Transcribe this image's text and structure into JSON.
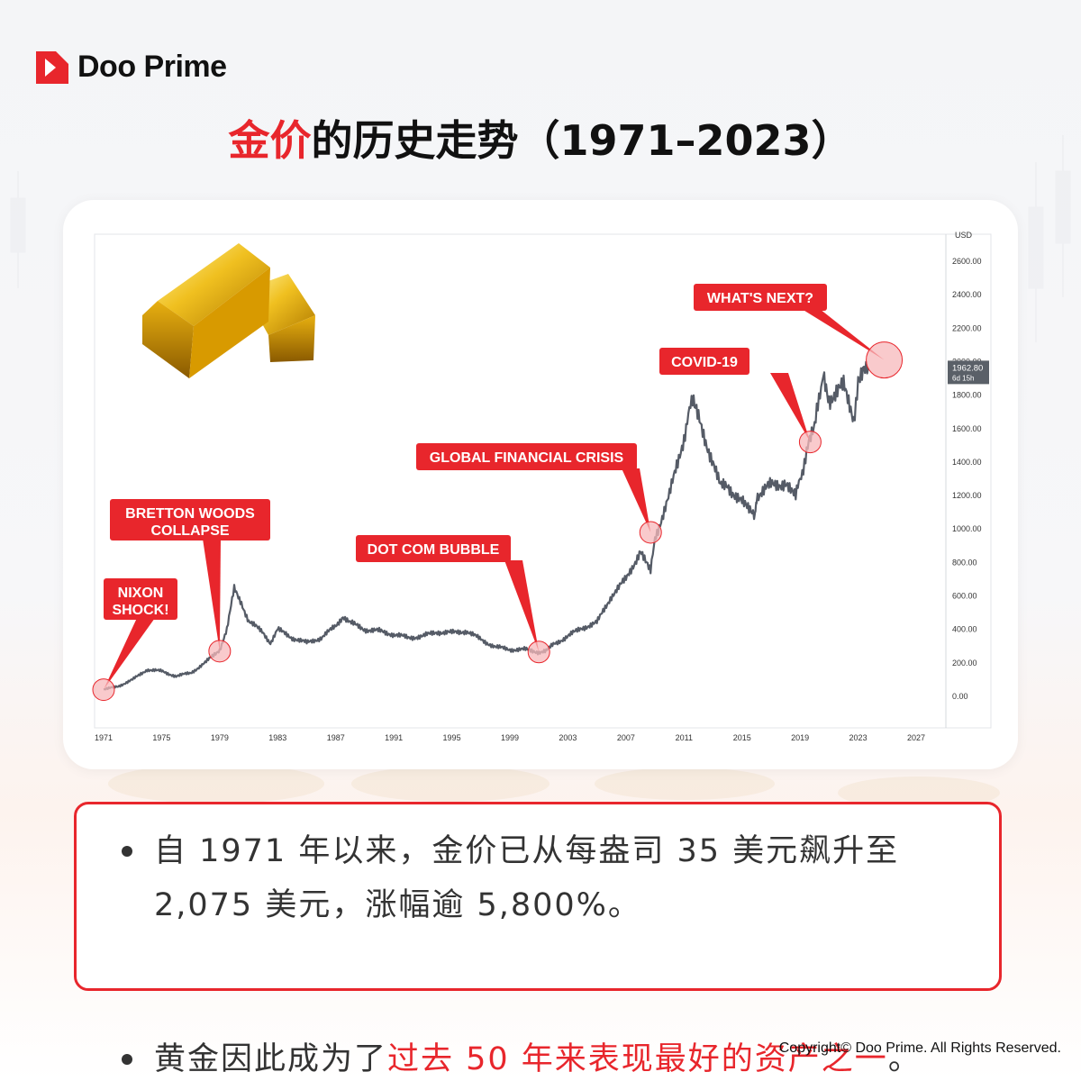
{
  "brand": {
    "name": "Doo Prime"
  },
  "title": {
    "part_red": "金价",
    "part_black": "的历史走势（1971–2023）"
  },
  "chart_data": {
    "type": "line",
    "currency_label": "USD",
    "y_ticks": [
      "2600.00",
      "2400.00",
      "2200.00",
      "2000.00",
      "1800.00",
      "1600.00",
      "1400.00",
      "1200.00",
      "1000.00",
      "800.00",
      "600.00",
      "400.00",
      "200.00",
      "0.00"
    ],
    "x_ticks": [
      "1971",
      "1975",
      "1979",
      "1983",
      "1987",
      "1991",
      "1995",
      "1999",
      "2003",
      "2007",
      "2011",
      "2015",
      "2019",
      "2023",
      "2027"
    ],
    "ylim": [
      0,
      2600
    ],
    "xlim": [
      1971,
      2027
    ],
    "last_price": "1962.80",
    "last_price_sub": "6d 15h",
    "series": [
      {
        "x": [
          1971,
          1972,
          1973,
          1974,
          1975,
          1976,
          1977,
          1978,
          1979,
          1979.5,
          1980,
          1980.5,
          1981,
          1982,
          1982.5,
          1983,
          1984,
          1985,
          1986,
          1987,
          1987.5,
          1988,
          1989,
          1990,
          1991,
          1992,
          1993,
          1994,
          1995,
          1996,
          1997,
          1998,
          1999,
          2000,
          2001,
          2001.5,
          2002,
          2003,
          2004,
          2005,
          2006,
          2007,
          2008,
          2008.7,
          2009,
          2010,
          2011,
          2011.6,
          2012,
          2013,
          2013.5,
          2014,
          2015,
          2015.9,
          2016,
          2017,
          2018,
          2018.7,
          2019,
          2019.6,
          2020,
          2020.6,
          2021,
          2022,
          2022.7,
          2023,
          2023.4,
          2023.7
        ],
        "y": [
          40,
          60,
          100,
          160,
          150,
          120,
          140,
          200,
          280,
          400,
          640,
          560,
          450,
          380,
          320,
          400,
          350,
          320,
          350,
          420,
          480,
          440,
          400,
          390,
          370,
          350,
          360,
          385,
          380,
          390,
          340,
          295,
          280,
          280,
          265,
          270,
          310,
          360,
          410,
          440,
          600,
          700,
          870,
          740,
          950,
          1200,
          1550,
          1780,
          1660,
          1400,
          1250,
          1260,
          1160,
          1060,
          1200,
          1260,
          1280,
          1190,
          1300,
          1500,
          1600,
          1950,
          1780,
          1850,
          1640,
          1900,
          1990,
          1962.8
        ]
      }
    ],
    "annotations": [
      {
        "text": [
          "NIXON",
          "SHOCK!"
        ],
        "x": 1971,
        "y": 40
      },
      {
        "text": [
          "BRETTON WOODS",
          "COLLAPSE"
        ],
        "x": 1979,
        "y": 270
      },
      {
        "text": [
          "DOT COM BUBBLE"
        ],
        "x": 2001,
        "y": 265
      },
      {
        "text": [
          "GLOBAL FINANCIAL CRISIS"
        ],
        "x": 2008.7,
        "y": 980
      },
      {
        "text": [
          "COVID-19"
        ],
        "x": 2019.7,
        "y": 1520
      },
      {
        "text": [
          "WHAT'S NEXT?"
        ],
        "x": 2024.8,
        "y": 2010
      }
    ],
    "colors": {
      "line": "#555b66",
      "label_bg": "#e8262c",
      "marker_fill": "#f7b8bb",
      "marker_stroke": "#e8262c"
    }
  },
  "info": {
    "bullet1": "自 1971 年以来，金价已从每盎司 35 美元飙升至 2,075 美元，涨幅逾 5,800%。",
    "bullet2_normal": "黄金因此成为了",
    "bullet2_red": "过去 50 年来表现最好的资产之一",
    "bullet2_end": "。"
  },
  "copyright": "Copyright© Doo Prime. All Rights Reserved.",
  "icons": {
    "logo": "doo-prime-logo-icon",
    "gold_bars": "gold-bars-image"
  }
}
